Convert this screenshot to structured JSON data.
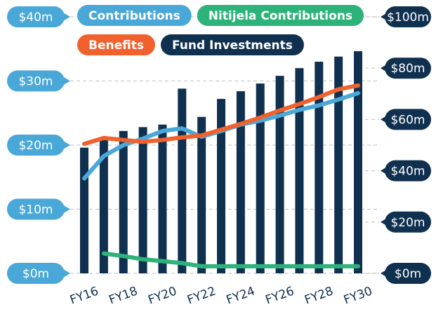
{
  "chart_data": {
    "type": "bar-line",
    "categories": [
      "FY16",
      null,
      "FY18",
      null,
      "FY20",
      null,
      "FY22",
      null,
      "FY24",
      null,
      "FY26",
      null,
      "FY28",
      null,
      "FY30"
    ],
    "series": [
      {
        "name": "Contributions",
        "color": "#4aa8d8",
        "kind": "line",
        "axis": "y",
        "values": [
          14.8,
          18.3,
          20,
          21,
          22.2,
          22.6,
          21.3,
          22.2,
          23.2,
          23.8,
          24.6,
          25.5,
          26.2,
          27.1,
          28.1
        ]
      },
      {
        "name": "Nitijela Contributions",
        "color": "#2db37a",
        "kind": "line",
        "axis": "y",
        "values": [
          null,
          3.1,
          2.7,
          2.2,
          1.9,
          1.6,
          1.1,
          1.1,
          1.1,
          1.1,
          1.1,
          1.1,
          1.1,
          1.1,
          1.1
        ]
      },
      {
        "name": "Benefits",
        "color": "#f0612d",
        "kind": "line",
        "axis": "y",
        "values": [
          20.2,
          21.1,
          20.8,
          20.5,
          20.8,
          21.2,
          21.5,
          22.4,
          23.3,
          24.3,
          25.4,
          26.4,
          27.5,
          28.7,
          29.3
        ]
      },
      {
        "name": "Fund Investments",
        "color": "#10304f",
        "kind": "bar",
        "axis": "y2",
        "values": [
          49,
          52,
          55.5,
          57,
          58,
          72,
          61,
          68,
          71,
          74,
          77,
          80,
          82.5,
          84.5,
          86.6
        ]
      }
    ],
    "ylim": [
      0,
      40
    ],
    "yticks": [
      {
        "value": 0,
        "label": "$0m"
      },
      {
        "value": 10,
        "label": "$10m"
      },
      {
        "value": 20,
        "label": "$20m"
      },
      {
        "value": 30,
        "label": "$30m"
      },
      {
        "value": 40,
        "label": "$40m"
      }
    ],
    "y2lim": [
      0,
      100
    ],
    "y2ticks": [
      {
        "value": 0,
        "label": "$0m"
      },
      {
        "value": 20,
        "label": "$20m"
      },
      {
        "value": 40,
        "label": "$40m"
      },
      {
        "value": 60,
        "label": "$60m"
      },
      {
        "value": 80,
        "label": "$80m"
      },
      {
        "value": 100,
        "label": "$100m"
      }
    ],
    "y_color": "#4aa8d8",
    "y2_color": "#10304f",
    "grid": true
  }
}
